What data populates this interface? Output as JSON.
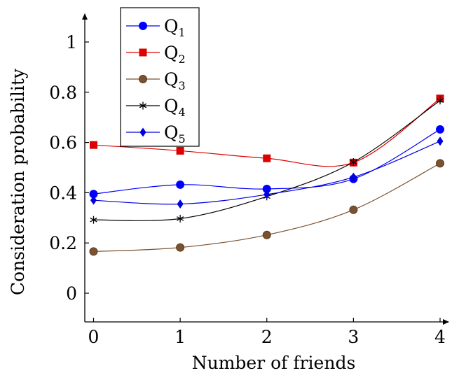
{
  "chart_data": {
    "type": "line",
    "x": [
      0,
      1,
      2,
      3,
      4
    ],
    "x_ticks": [
      "0",
      "1",
      "2",
      "3",
      "4"
    ],
    "y_ticks": [
      "0",
      "0.2",
      "0.4",
      "0.6",
      "0.8",
      "1"
    ],
    "xlabel": "Number of friends",
    "ylabel": "Consideration probability",
    "xlim": [
      -0.1,
      4.2
    ],
    "ylim": [
      -0.1,
      1.1
    ],
    "grid": false,
    "legend_position": "top-left",
    "series": [
      {
        "name": "Q",
        "subscript": "1",
        "color": "#0000ff",
        "marker": "circle",
        "values": [
          0.395,
          0.432,
          0.415,
          0.455,
          0.652
        ]
      },
      {
        "name": "Q",
        "subscript": "2",
        "color": "#dd0000",
        "marker": "square",
        "values": [
          0.59,
          0.567,
          0.537,
          0.52,
          0.775
        ]
      },
      {
        "name": "Q",
        "subscript": "3",
        "color": "#7a5230",
        "marker": "circle",
        "values": [
          0.166,
          0.182,
          0.232,
          0.332,
          0.517
        ]
      },
      {
        "name": "Q",
        "subscript": "4",
        "color": "#000000",
        "marker": "star",
        "values": [
          0.292,
          0.297,
          0.385,
          0.522,
          0.767
        ]
      },
      {
        "name": "Q",
        "subscript": "5",
        "color": "#0000dd",
        "marker": "diamond",
        "values": [
          0.37,
          0.355,
          0.393,
          0.462,
          0.605
        ]
      }
    ]
  }
}
